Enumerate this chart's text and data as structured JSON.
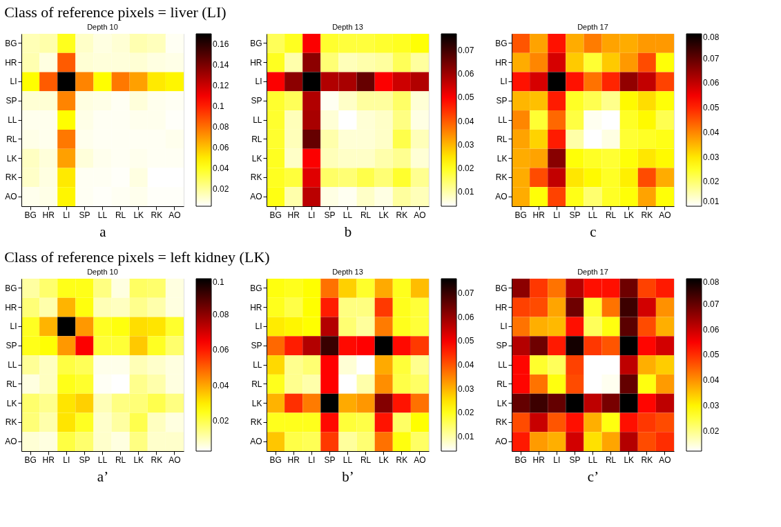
{
  "chart_data": [
    {
      "type": "heatmap",
      "subtitle": "Class of reference pixels = liver (LI)",
      "title": "Depth 10",
      "annotations": [
        "a"
      ],
      "categories": [
        "BG",
        "HR",
        "LI",
        "SP",
        "LL",
        "RL",
        "LK",
        "RK",
        "AO"
      ],
      "y_categories": [
        "BG",
        "HR",
        "LI",
        "SP",
        "LL",
        "RL",
        "LK",
        "RK",
        "AO"
      ],
      "clim": [
        0.003,
        0.17
      ],
      "cticks": [
        0.02,
        0.04,
        0.06,
        0.08,
        0.1,
        0.12,
        0.14,
        0.16
      ],
      "cells": [
        [
          0.015,
          0.017,
          0.04,
          0.012,
          0.008,
          0.01,
          0.016,
          0.014,
          0.005
        ],
        [
          0.016,
          0.008,
          0.085,
          0.01,
          0.009,
          0.009,
          0.01,
          0.008,
          0.007
        ],
        [
          0.045,
          0.085,
          0.17,
          0.075,
          0.045,
          0.078,
          0.068,
          0.05,
          0.047
        ],
        [
          0.01,
          0.01,
          0.075,
          0.008,
          0.007,
          0.005,
          0.009,
          0.006,
          0.005
        ],
        [
          0.006,
          0.006,
          0.045,
          0.007,
          0.005,
          0.005,
          0.006,
          0.006,
          0.004
        ],
        [
          0.007,
          0.006,
          0.078,
          0.006,
          0.005,
          0.005,
          0.005,
          0.005,
          0.006
        ],
        [
          0.013,
          0.009,
          0.068,
          0.009,
          0.006,
          0.005,
          0.006,
          0.005,
          0.005
        ],
        [
          0.012,
          0.008,
          0.05,
          0.005,
          0.005,
          0.004,
          0.008,
          0.003,
          0.003
        ],
        [
          0.006,
          0.007,
          0.047,
          0.005,
          0.004,
          0.005,
          0.006,
          0.004,
          0.004
        ]
      ]
    },
    {
      "type": "heatmap",
      "title": "Depth 13",
      "annotations": [
        "b"
      ],
      "categories": [
        "BG",
        "HR",
        "LI",
        "SP",
        "LL",
        "RL",
        "LK",
        "RK",
        "AO"
      ],
      "y_categories": [
        "BG",
        "HR",
        "LI",
        "SP",
        "LL",
        "RL",
        "LK",
        "RK",
        "AO"
      ],
      "clim": [
        0.004,
        0.077
      ],
      "cticks": [
        0.01,
        0.02,
        0.03,
        0.04,
        0.05,
        0.06,
        0.07
      ],
      "cells": [
        [
          0.016,
          0.02,
          0.05,
          0.019,
          0.018,
          0.018,
          0.019,
          0.02,
          0.022
        ],
        [
          0.02,
          0.01,
          0.062,
          0.014,
          0.009,
          0.01,
          0.011,
          0.016,
          0.011
        ],
        [
          0.05,
          0.062,
          0.077,
          0.058,
          0.059,
          0.066,
          0.05,
          0.055,
          0.058
        ],
        [
          0.019,
          0.016,
          0.058,
          0.005,
          0.008,
          0.011,
          0.011,
          0.015,
          0.007
        ],
        [
          0.019,
          0.009,
          0.059,
          0.007,
          0.004,
          0.007,
          0.008,
          0.013,
          0.006
        ],
        [
          0.019,
          0.009,
          0.066,
          0.01,
          0.007,
          0.007,
          0.008,
          0.017,
          0.009
        ],
        [
          0.02,
          0.008,
          0.05,
          0.009,
          0.008,
          0.008,
          0.01,
          0.012,
          0.007
        ],
        [
          0.02,
          0.018,
          0.053,
          0.015,
          0.014,
          0.017,
          0.014,
          0.019,
          0.012
        ],
        [
          0.021,
          0.01,
          0.057,
          0.006,
          0.005,
          0.008,
          0.006,
          0.011,
          0.009
        ]
      ]
    },
    {
      "type": "heatmap",
      "title": "Depth 17",
      "annotations": [
        "c"
      ],
      "categories": [
        "BG",
        "HR",
        "LI",
        "SP",
        "LL",
        "RL",
        "LK",
        "RK",
        "AO"
      ],
      "y_categories": [
        "BG",
        "HR",
        "LI",
        "SP",
        "LL",
        "RL",
        "LK",
        "RK",
        "AO"
      ],
      "clim": [
        0.01,
        0.08
      ],
      "cticks": [
        0.01,
        0.02,
        0.03,
        0.04,
        0.05,
        0.06,
        0.07,
        0.08
      ],
      "cells": [
        [
          0.045,
          0.037,
          0.052,
          0.036,
          0.041,
          0.037,
          0.036,
          0.038,
          0.038
        ],
        [
          0.036,
          0.04,
          0.058,
          0.033,
          0.024,
          0.033,
          0.038,
          0.046,
          0.027
        ],
        [
          0.052,
          0.058,
          0.08,
          0.052,
          0.042,
          0.05,
          0.065,
          0.06,
          0.047
        ],
        [
          0.035,
          0.034,
          0.051,
          0.025,
          0.022,
          0.018,
          0.028,
          0.031,
          0.027
        ],
        [
          0.04,
          0.024,
          0.043,
          0.023,
          0.011,
          0.01,
          0.025,
          0.028,
          0.022
        ],
        [
          0.037,
          0.032,
          0.051,
          0.016,
          0.01,
          0.012,
          0.024,
          0.025,
          0.026
        ],
        [
          0.036,
          0.037,
          0.066,
          0.027,
          0.025,
          0.024,
          0.027,
          0.03,
          0.028
        ],
        [
          0.036,
          0.046,
          0.06,
          0.03,
          0.028,
          0.025,
          0.029,
          0.046,
          0.036
        ],
        [
          0.036,
          0.027,
          0.047,
          0.026,
          0.02,
          0.025,
          0.027,
          0.037,
          0.027
        ]
      ]
    },
    {
      "type": "heatmap",
      "subtitle": "Class of reference pixels = left kidney (LK)",
      "title": "Depth 10",
      "annotations": [
        "a’"
      ],
      "categories": [
        "BG",
        "HR",
        "LI",
        "SP",
        "LL",
        "RL",
        "LK",
        "RK",
        "AO"
      ],
      "y_categories": [
        "BG",
        "HR",
        "LI",
        "SP",
        "LL",
        "RL",
        "LK",
        "RK",
        "AO"
      ],
      "clim": [
        0.003,
        0.1
      ],
      "cticks": [
        0.02,
        0.04,
        0.06,
        0.08,
        0.1
      ],
      "cells": [
        [
          0.012,
          0.017,
          0.025,
          0.025,
          0.015,
          0.006,
          0.018,
          0.017,
          0.006
        ],
        [
          0.016,
          0.011,
          0.038,
          0.026,
          0.01,
          0.009,
          0.014,
          0.011,
          0.006
        ],
        [
          0.024,
          0.038,
          0.1,
          0.042,
          0.024,
          0.026,
          0.032,
          0.031,
          0.023
        ],
        [
          0.025,
          0.027,
          0.042,
          0.064,
          0.022,
          0.022,
          0.035,
          0.024,
          0.017
        ],
        [
          0.013,
          0.009,
          0.021,
          0.019,
          0.005,
          0.005,
          0.01,
          0.008,
          0.006
        ],
        [
          0.006,
          0.009,
          0.025,
          0.023,
          0.004,
          0.003,
          0.014,
          0.011,
          0.006
        ],
        [
          0.017,
          0.014,
          0.031,
          0.034,
          0.01,
          0.015,
          0.016,
          0.02,
          0.015
        ],
        [
          0.016,
          0.011,
          0.031,
          0.024,
          0.008,
          0.012,
          0.02,
          0.009,
          0.006
        ],
        [
          0.007,
          0.006,
          0.021,
          0.017,
          0.008,
          0.006,
          0.015,
          0.008,
          0.008
        ]
      ]
    },
    {
      "type": "heatmap",
      "title": "Depth 13",
      "annotations": [
        "b’"
      ],
      "categories": [
        "BG",
        "HR",
        "LI",
        "SP",
        "LL",
        "RL",
        "LK",
        "RK",
        "AO"
      ],
      "y_categories": [
        "BG",
        "HR",
        "LI",
        "SP",
        "LL",
        "RL",
        "LK",
        "RK",
        "AO"
      ],
      "clim": [
        0.004,
        0.076
      ],
      "cticks": [
        0.01,
        0.02,
        0.03,
        0.04,
        0.05,
        0.06,
        0.07
      ],
      "cells": [
        [
          0.021,
          0.02,
          0.022,
          0.037,
          0.027,
          0.019,
          0.031,
          0.02,
          0.029
        ],
        [
          0.02,
          0.017,
          0.022,
          0.046,
          0.013,
          0.013,
          0.043,
          0.02,
          0.018
        ],
        [
          0.024,
          0.023,
          0.022,
          0.057,
          0.014,
          0.011,
          0.036,
          0.02,
          0.018
        ],
        [
          0.038,
          0.046,
          0.057,
          0.07,
          0.048,
          0.049,
          0.076,
          0.048,
          0.043
        ],
        [
          0.026,
          0.012,
          0.014,
          0.049,
          0.007,
          0.004,
          0.031,
          0.018,
          0.012
        ],
        [
          0.02,
          0.012,
          0.01,
          0.049,
          0.004,
          0.01,
          0.034,
          0.017,
          0.015
        ],
        [
          0.03,
          0.044,
          0.036,
          0.076,
          0.031,
          0.033,
          0.062,
          0.047,
          0.037
        ],
        [
          0.02,
          0.02,
          0.02,
          0.048,
          0.018,
          0.017,
          0.047,
          0.015,
          0.022
        ],
        [
          0.028,
          0.017,
          0.016,
          0.043,
          0.011,
          0.014,
          0.037,
          0.021,
          0.015
        ]
      ]
    },
    {
      "type": "heatmap",
      "title": "Depth 17",
      "annotations": [
        "c’"
      ],
      "categories": [
        "BG",
        "HR",
        "LI",
        "SP",
        "LL",
        "RL",
        "LK",
        "RK",
        "AO"
      ],
      "y_categories": [
        "BG",
        "HR",
        "LI",
        "SP",
        "LL",
        "RL",
        "LK",
        "RK",
        "AO"
      ],
      "clim": [
        0.012,
        0.08
      ],
      "cticks": [
        0.02,
        0.03,
        0.04,
        0.05,
        0.06,
        0.07,
        0.08
      ],
      "cells": [
        [
          0.066,
          0.049,
          0.043,
          0.062,
          0.053,
          0.053,
          0.069,
          0.048,
          0.052
        ],
        [
          0.048,
          0.047,
          0.038,
          0.069,
          0.026,
          0.043,
          0.074,
          0.059,
          0.04
        ],
        [
          0.043,
          0.037,
          0.036,
          0.053,
          0.023,
          0.028,
          0.071,
          0.047,
          0.037
        ],
        [
          0.062,
          0.069,
          0.052,
          0.078,
          0.049,
          0.046,
          0.08,
          0.054,
          0.059
        ],
        [
          0.054,
          0.026,
          0.023,
          0.048,
          0.012,
          0.012,
          0.061,
          0.037,
          0.034
        ],
        [
          0.054,
          0.043,
          0.028,
          0.047,
          0.012,
          0.013,
          0.07,
          0.028,
          0.039
        ],
        [
          0.07,
          0.074,
          0.07,
          0.08,
          0.061,
          0.068,
          0.08,
          0.054,
          0.061
        ],
        [
          0.047,
          0.06,
          0.046,
          0.053,
          0.037,
          0.028,
          0.053,
          0.049,
          0.047
        ],
        [
          0.052,
          0.039,
          0.037,
          0.059,
          0.032,
          0.038,
          0.062,
          0.047,
          0.05
        ]
      ]
    }
  ]
}
